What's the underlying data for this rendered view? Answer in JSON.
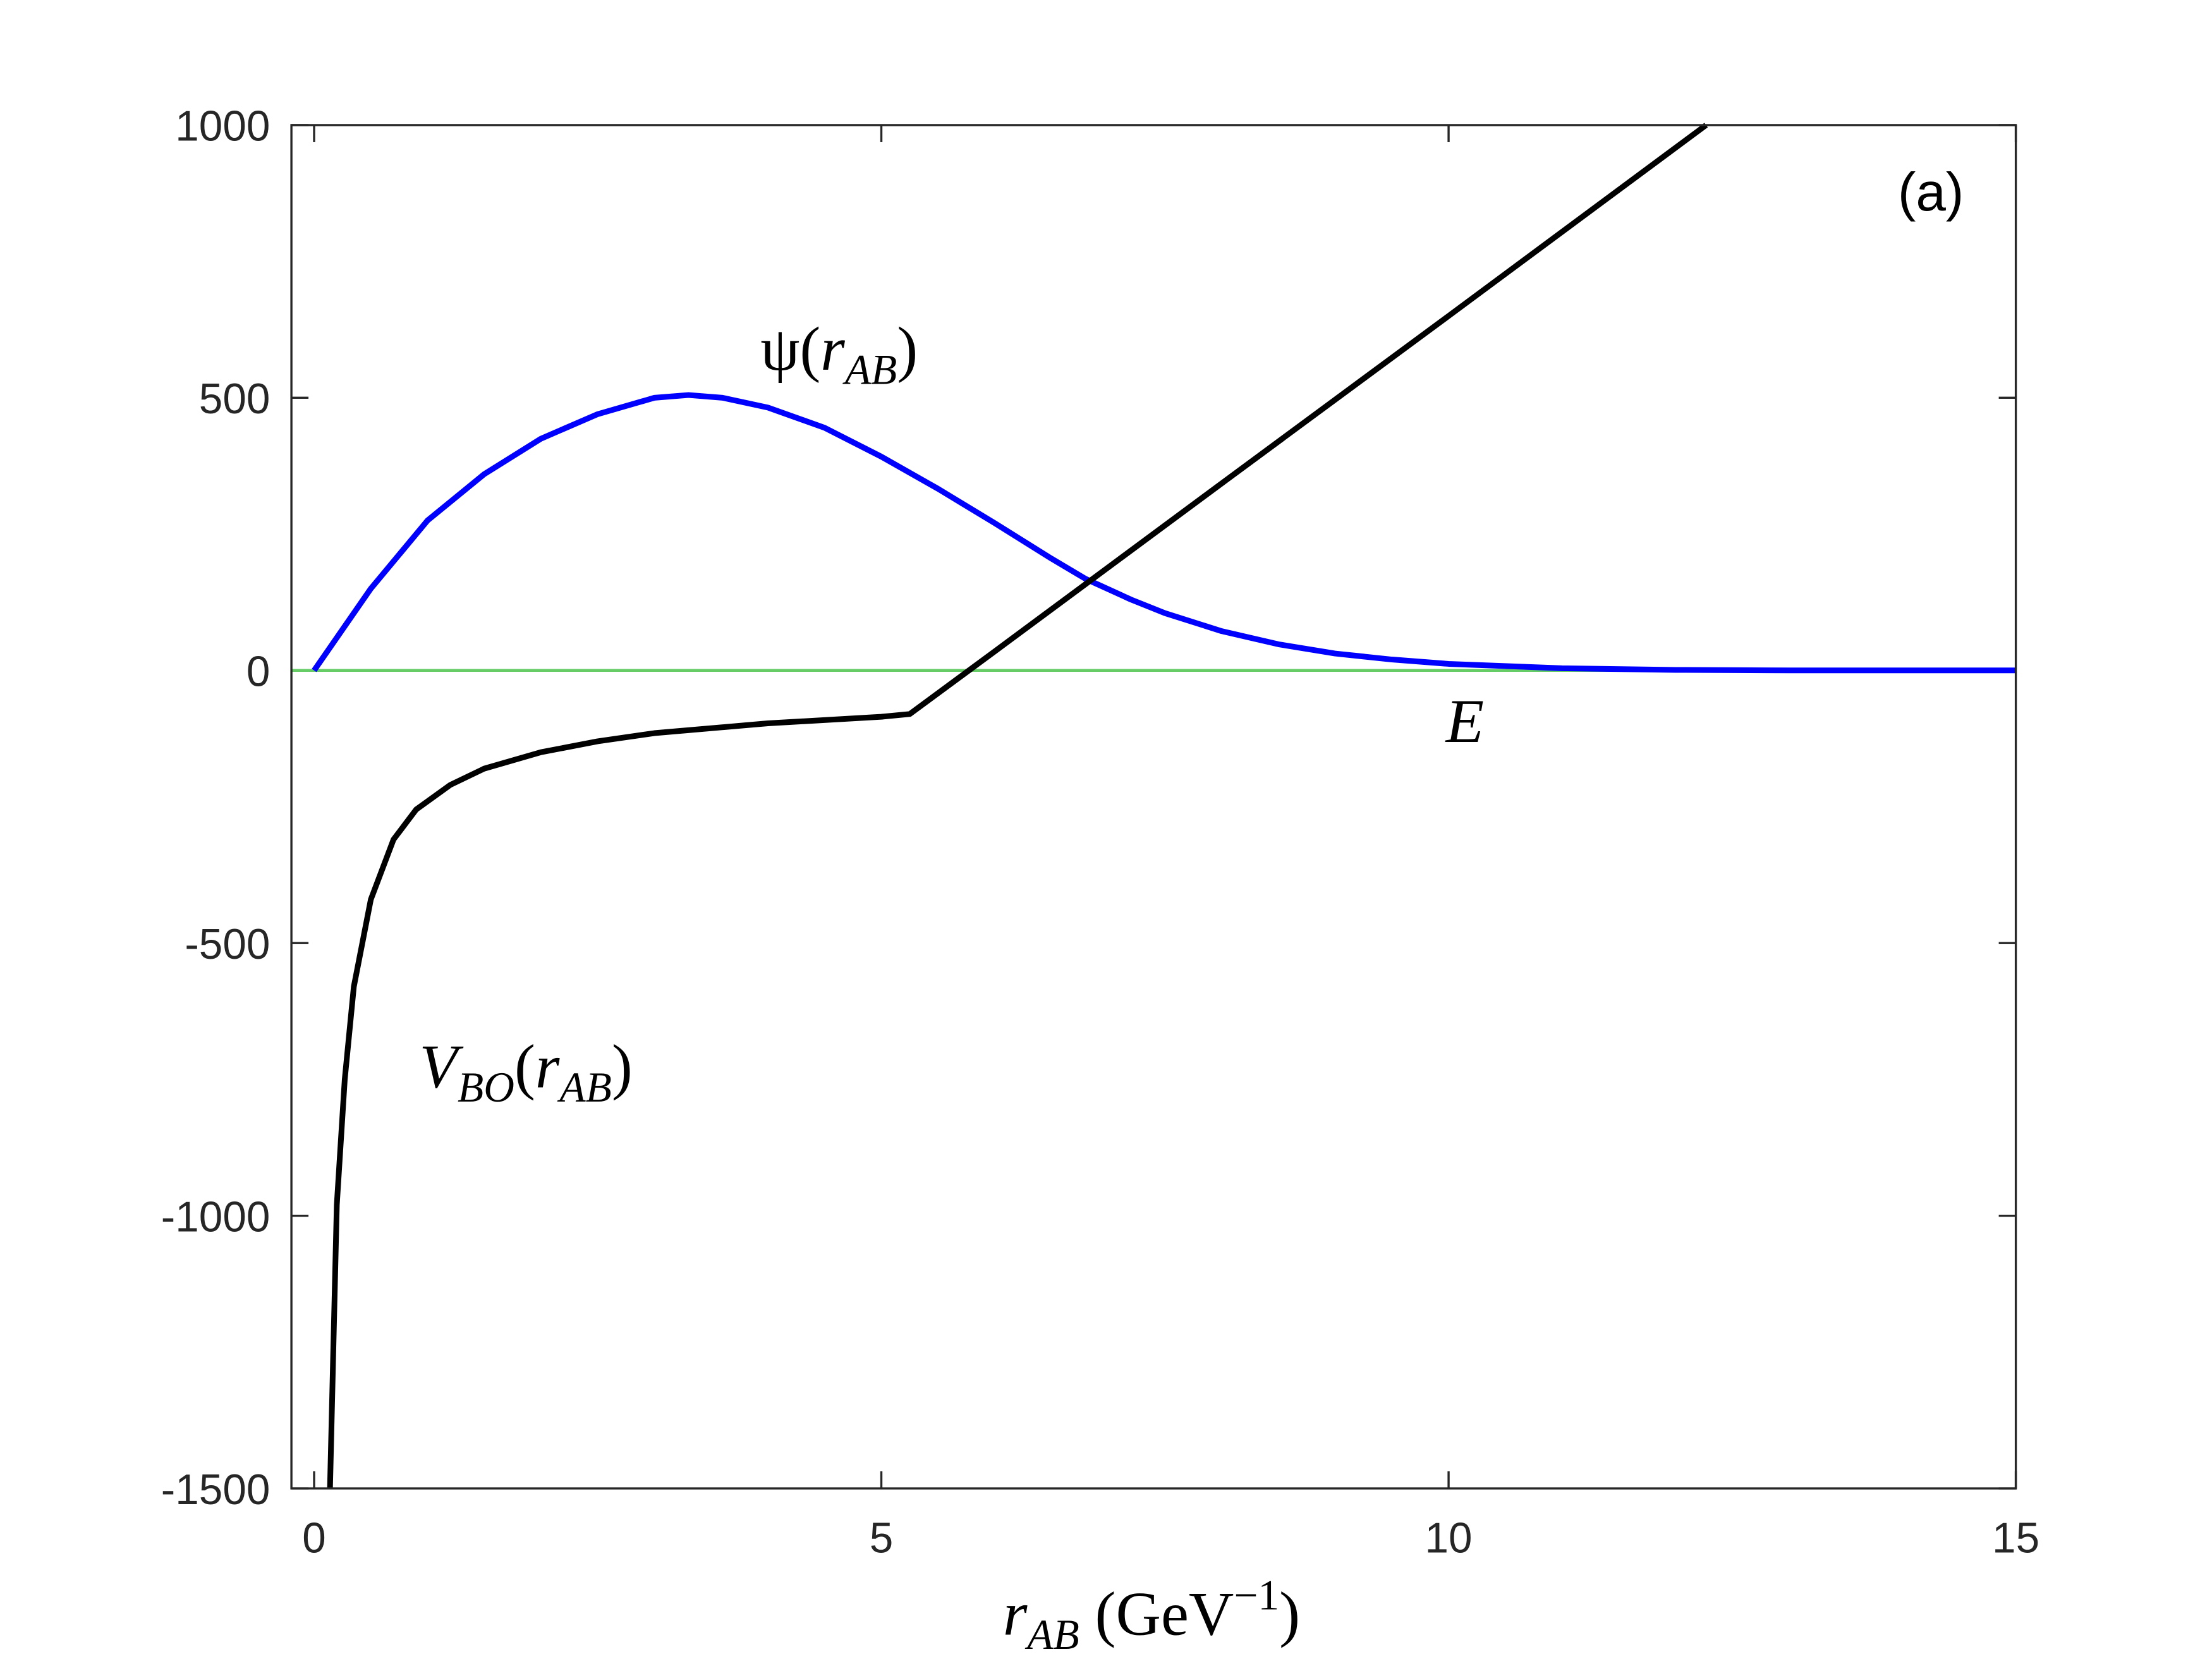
{
  "chart_data": {
    "type": "line",
    "x_label_parts": [
      "r",
      "AB",
      " (GeV",
      "−1",
      ")"
    ],
    "xlim": [
      -0.2,
      15
    ],
    "xticks": [
      0,
      5,
      10,
      15
    ],
    "ylim": [
      -1500,
      1000
    ],
    "yticks": [
      -1500,
      -1000,
      -500,
      0,
      500,
      1000
    ],
    "series": [
      {
        "name": "ψ(r_AB)",
        "color": "#0000ff",
        "x": [
          0,
          0.5,
          1,
          1.5,
          2,
          2.5,
          3,
          3.3,
          3.6,
          4,
          4.5,
          5,
          5.5,
          6,
          6.5,
          6.8,
          7.2,
          7.5,
          8,
          8.5,
          9,
          9.5,
          10,
          11,
          12,
          13,
          15
        ],
        "values": [
          0,
          150,
          275,
          360,
          425,
          470,
          500,
          505,
          500,
          482,
          445,
          392,
          333,
          270,
          205,
          168,
          130,
          105,
          72,
          48,
          31,
          20,
          12,
          4,
          1,
          0,
          0
        ]
      },
      {
        "name": "V_BO(r_AB)",
        "color": "#000000",
        "x": [
          0.14,
          0.2,
          0.27,
          0.35,
          0.5,
          0.7,
          0.9,
          1.2,
          1.5,
          2,
          2.5,
          3,
          4,
          5,
          5.25,
          6,
          8,
          10,
          12.27
        ],
        "values": [
          -1500,
          -980,
          -750,
          -580,
          -420,
          -310,
          -255,
          -210,
          -180,
          -150,
          -130,
          -115,
          -97,
          -85,
          -80,
          35,
          343,
          650,
          1000
        ]
      },
      {
        "name": "E",
        "color": "#66cc66",
        "x": [
          -0.2,
          15
        ],
        "values": [
          0,
          0
        ]
      }
    ],
    "annotations": [
      {
        "parts": [
          "ψ(",
          "r",
          "AB",
          ")"
        ]
      },
      {
        "parts": [
          "V",
          "BO",
          "(",
          "r",
          "AB",
          ")"
        ]
      },
      {
        "parts": [
          "E"
        ]
      },
      {
        "parts": [
          "(a)"
        ]
      }
    ]
  }
}
